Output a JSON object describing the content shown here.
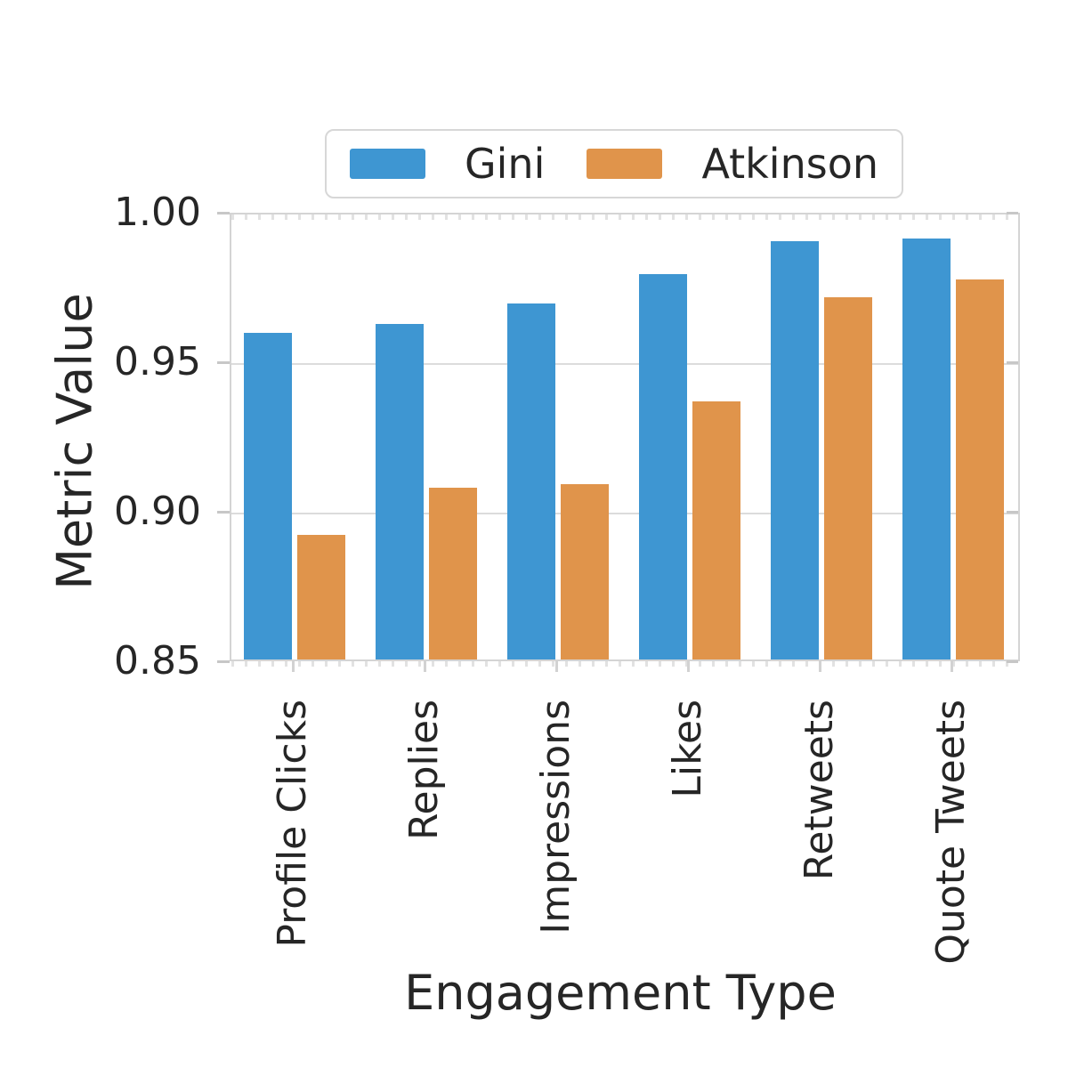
{
  "figure": {
    "background": "#ffffff",
    "text_color": "#262626",
    "grid_color": "#dcdcdc",
    "spine_color": "#d4d4d4"
  },
  "chart_data": {
    "type": "bar",
    "title": "",
    "xlabel": "Engagement Type",
    "ylabel": "Metric Value",
    "categories": [
      "Profile Clicks",
      "Replies",
      "Impressions",
      "Likes",
      "Retweets",
      "Quote Tweets"
    ],
    "series": [
      {
        "name": "Gini",
        "color": "#3e96d2",
        "values": [
          0.96,
          0.963,
          0.97,
          0.98,
          0.991,
          0.992
        ]
      },
      {
        "name": "Atkinson",
        "color": "#e0944b",
        "values": [
          0.892,
          0.908,
          0.909,
          0.937,
          0.972,
          0.978
        ]
      }
    ],
    "ylim": [
      0.85,
      1.0
    ],
    "yticks": [
      {
        "value": 1.0,
        "label": "1.00"
      },
      {
        "value": 0.95,
        "label": "0.95"
      },
      {
        "value": 0.9,
        "label": "0.90"
      },
      {
        "value": 0.85,
        "label": "0.85"
      }
    ],
    "grid": "horizontal",
    "legend_position": "top-center"
  }
}
